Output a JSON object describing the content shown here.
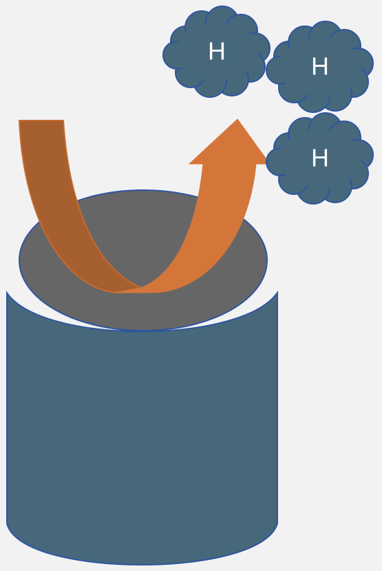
{
  "nodes": [
    {
      "label": "H"
    },
    {
      "label": "H"
    },
    {
      "label": "H"
    }
  ]
}
